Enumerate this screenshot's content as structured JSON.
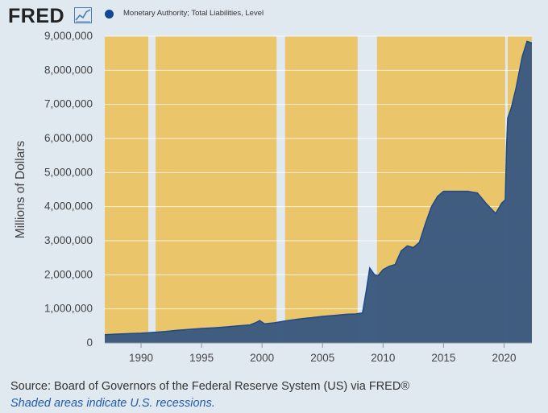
{
  "header": {
    "logo_text": "FRED",
    "logo_icon": "line-chart-icon"
  },
  "colors": {
    "background": "#e1e9f0",
    "plot_background": "#ebc56a",
    "recession_shade": "#e1e9f0",
    "series_fill": "#3c5a80",
    "series_line": "#1c4a8a",
    "legend_marker": "#0e4794"
  },
  "chart_data": {
    "type": "area",
    "title": "",
    "xlabel": "",
    "ylabel": "Millions of Dollars",
    "xlim": [
      1987.0,
      2022.3
    ],
    "ylim": [
      0,
      9000000
    ],
    "yticks": [
      0,
      1000000,
      2000000,
      3000000,
      4000000,
      5000000,
      6000000,
      7000000,
      8000000,
      9000000
    ],
    "ytick_labels": [
      "0",
      "1,000,000",
      "2,000,000",
      "3,000,000",
      "4,000,000",
      "5,000,000",
      "6,000,000",
      "7,000,000",
      "8,000,000",
      "9,000,000"
    ],
    "xticks": [
      1990,
      1995,
      2000,
      2005,
      2010,
      2015,
      2020
    ],
    "xtick_labels": [
      "1990",
      "1995",
      "2000",
      "2005",
      "2010",
      "2015",
      "2020"
    ],
    "recessions": [
      [
        1990.6,
        1991.2
      ],
      [
        2001.2,
        2001.9
      ],
      [
        2007.9,
        2009.5
      ],
      [
        2020.1,
        2020.3
      ]
    ],
    "legend": [
      {
        "name": "Monetary Authority; Total Liabilities, Level"
      }
    ],
    "series": [
      {
        "name": "Monetary Authority; Total Liabilities, Level",
        "points": [
          [
            1987.0,
            240000
          ],
          [
            1988.0,
            260000
          ],
          [
            1989.0,
            275000
          ],
          [
            1990.0,
            285000
          ],
          [
            1991.0,
            310000
          ],
          [
            1992.0,
            335000
          ],
          [
            1993.0,
            370000
          ],
          [
            1994.0,
            400000
          ],
          [
            1995.0,
            425000
          ],
          [
            1996.0,
            445000
          ],
          [
            1997.0,
            470000
          ],
          [
            1998.0,
            500000
          ],
          [
            1999.0,
            530000
          ],
          [
            1999.5,
            600000
          ],
          [
            1999.8,
            660000
          ],
          [
            2000.2,
            560000
          ],
          [
            2001.0,
            590000
          ],
          [
            2002.0,
            650000
          ],
          [
            2003.0,
            700000
          ],
          [
            2004.0,
            740000
          ],
          [
            2005.0,
            780000
          ],
          [
            2006.0,
            810000
          ],
          [
            2007.0,
            840000
          ],
          [
            2007.7,
            850000
          ],
          [
            2008.3,
            880000
          ],
          [
            2008.6,
            1500000
          ],
          [
            2008.9,
            2200000
          ],
          [
            2009.3,
            2000000
          ],
          [
            2009.6,
            1980000
          ],
          [
            2010.0,
            2150000
          ],
          [
            2010.5,
            2250000
          ],
          [
            2011.0,
            2300000
          ],
          [
            2011.5,
            2700000
          ],
          [
            2012.0,
            2850000
          ],
          [
            2012.5,
            2800000
          ],
          [
            2013.0,
            2950000
          ],
          [
            2013.5,
            3500000
          ],
          [
            2014.0,
            4000000
          ],
          [
            2014.5,
            4300000
          ],
          [
            2015.0,
            4450000
          ],
          [
            2016.0,
            4450000
          ],
          [
            2017.0,
            4450000
          ],
          [
            2017.8,
            4400000
          ],
          [
            2018.5,
            4100000
          ],
          [
            2019.3,
            3800000
          ],
          [
            2019.8,
            4100000
          ],
          [
            2020.1,
            4200000
          ],
          [
            2020.2,
            5700000
          ],
          [
            2020.3,
            6600000
          ],
          [
            2020.6,
            6900000
          ],
          [
            2021.0,
            7500000
          ],
          [
            2021.5,
            8400000
          ],
          [
            2021.9,
            8850000
          ],
          [
            2022.3,
            8800000
          ]
        ]
      }
    ]
  },
  "footer": {
    "source": "Source: Board of Governors of the Federal Reserve System (US) via FRED®",
    "note": "Shaded areas indicate U.S. recessions."
  }
}
